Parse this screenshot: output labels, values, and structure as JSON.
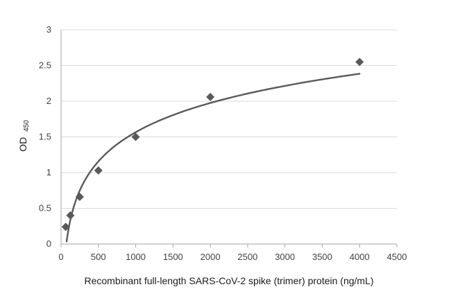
{
  "chart_data": {
    "type": "scatter",
    "title": "",
    "xlabel": "Recombinant full-length SARS-CoV-2 spike (trimer) protein (ng/mL)",
    "ylabel_main": "OD",
    "ylabel_sub": "450",
    "xlim": [
      0,
      4500
    ],
    "ylim": [
      0,
      3
    ],
    "x_ticks": [
      "0",
      "500",
      "1000",
      "1500",
      "2000",
      "2500",
      "3000",
      "3500",
      "4000",
      "4500"
    ],
    "y_ticks": [
      "0",
      "0.5",
      "1",
      "1.5",
      "2",
      "2.5",
      "3"
    ],
    "grid": true,
    "legend": "none",
    "series": [
      {
        "x": [
          62.5,
          125,
          250,
          500,
          1000,
          2000,
          4000
        ],
        "y": [
          0.24,
          0.4,
          0.66,
          1.03,
          1.5,
          2.06,
          2.55
        ]
      }
    ],
    "trendline": {
      "type": "logarithmic",
      "x_range": [
        75,
        4000
      ],
      "a": 0.5905,
      "b": -2.513
    },
    "marker_color": "#595959",
    "line_color": "#595959"
  }
}
